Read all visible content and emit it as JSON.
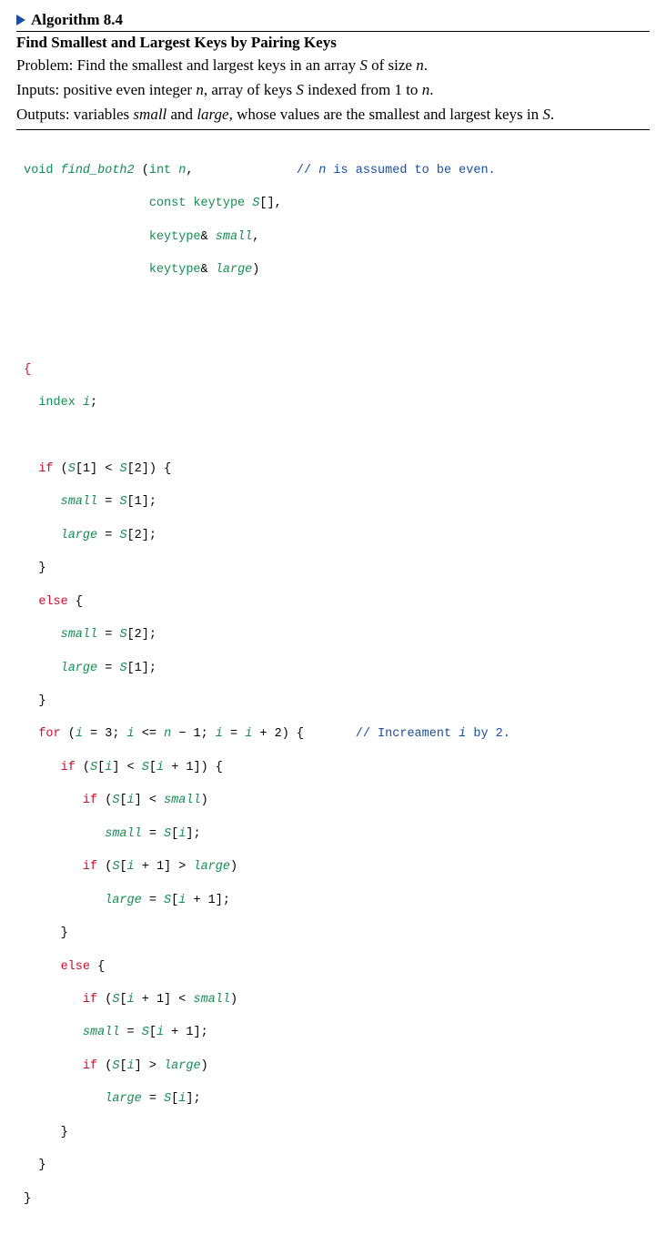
{
  "header": {
    "label": "Algorithm 8.4"
  },
  "subtitle": "Find Smallest and Largest Keys by Pairing Keys",
  "desc": {
    "problem_prefix": "Problem: Find the smallest and largest keys in an array ",
    "problem_S": "S",
    "problem_mid": " of size ",
    "problem_n": "n",
    "problem_end": ".",
    "inputs_prefix": "Inputs: positive even integer ",
    "inputs_n": "n",
    "inputs_mid": ", array of keys ",
    "inputs_S": "S",
    "inputs_mid2": " indexed from 1 to ",
    "inputs_n2": "n",
    "inputs_end": ".",
    "outputs_prefix": "Outputs: variables ",
    "outputs_small": "small",
    "outputs_mid": " and ",
    "outputs_large": "large",
    "outputs_mid2": ", whose values are the smallest and largest keys in ",
    "outputs_S": "S",
    "outputs_end": "."
  },
  "code": {
    "sig": {
      "void": "void",
      "fn": "find_both2",
      "lpar": " (",
      "int": "int",
      "sp": " ",
      "n": "n",
      "comma": ",",
      "pad1": "              ",
      "cmt1a": "// ",
      "cmt1b": "n",
      "cmt1c": " is assumed to be even.",
      "indent_param": "                  ",
      "const": "const",
      "keytype": "keytype",
      "S": "S",
      "brk": "[]",
      "c2": ",",
      "amp": "&",
      "small": "small",
      "c3": ",",
      "large": "large",
      "rparen": ")"
    },
    "l_open": "{",
    "l_index_kw": "index",
    "l_index_i": "i",
    "l_sc": ";",
    "if1": {
      "if": "if",
      "open": " (",
      "S": "S",
      "b1": "[1]",
      "lt": " < ",
      "b2": "[2]) {"
    },
    "a1": {
      "lhs": "small",
      "eq": " = ",
      "S": "S",
      "rhs": "[1];"
    },
    "a2": {
      "lhs": "large",
      "eq": " = ",
      "S": "S",
      "rhs": "[2];"
    },
    "rb": "}",
    "else": "else",
    "elseopen": " {",
    "a3": {
      "lhs": "small",
      "eq": " = ",
      "S": "S",
      "rhs": "[2];"
    },
    "a4": {
      "lhs": "large",
      "eq": " = ",
      "S": "S",
      "rhs": "[1];"
    },
    "for": {
      "for": "for",
      "open": " (",
      "i": "i",
      "eq3": " = 3; ",
      "i2": "i",
      "le": " <= ",
      "n": "n",
      "m1": " − 1; ",
      "i3": "i",
      "eq": " = ",
      "i4": "i",
      "p2": " + 2) {",
      "pad": "       ",
      "cmt_a": "// Increament ",
      "cmt_i": "i",
      "cmt_b": " by 2."
    },
    "if2": {
      "if": "if",
      "open": " (",
      "S": "S",
      "bi": "[",
      "i": "i",
      "cb": "]",
      "lt": " < ",
      "S2": "S",
      "bi2": "[",
      "i2": "i",
      "p1": " + 1]) {"
    },
    "if3": {
      "if": "if",
      "open": " (",
      "S": "S",
      "bi": "[",
      "i": "i",
      "cb": "]",
      "lt": " < ",
      "small": "small",
      "rp": ")"
    },
    "a5": {
      "lhs": "small",
      "eq": " = ",
      "S": "S",
      "bi": "[",
      "i": "i",
      "end": "];"
    },
    "if4": {
      "if": "if",
      "open": " (",
      "S": "S",
      "bi": "[",
      "i": "i",
      "p1": " + 1]",
      "gt": " > ",
      "large": "large",
      "rp": ")"
    },
    "a6": {
      "lhs": "large",
      "eq": " = ",
      "S": "S",
      "bi": "[",
      "i": "i",
      "end": " + 1];"
    },
    "if5": {
      "if": "if",
      "open": " (",
      "S": "S",
      "bi": "[",
      "i": "i",
      "p1": " + 1]",
      "lt": " < ",
      "small": "small",
      "rp": ")"
    },
    "a7": {
      "lhs": "small",
      "eq": " = ",
      "S": "S",
      "bi": "[",
      "i": "i",
      "end": " + 1];"
    },
    "if6": {
      "if": "if",
      "open": " (",
      "S": "S",
      "bi": "[",
      "i": "i",
      "cb": "]",
      "gt": " > ",
      "large": "large",
      "rp": ")"
    },
    "a8": {
      "lhs": "large",
      "eq": " = ",
      "S": "S",
      "bi": "[",
      "i": "i",
      "end": "];"
    }
  },
  "colors": {
    "keyword_green": "#158c53",
    "control_red": "#c8102e",
    "comment_blue": "#1a4ea0",
    "triangle_blue": "#1a4ea0",
    "text_black": "#000000",
    "background": "#ffffff"
  },
  "fonts": {
    "body_family": "Times New Roman",
    "body_size_pt": 13,
    "code_family": "Courier New",
    "code_size_pt": 10
  }
}
